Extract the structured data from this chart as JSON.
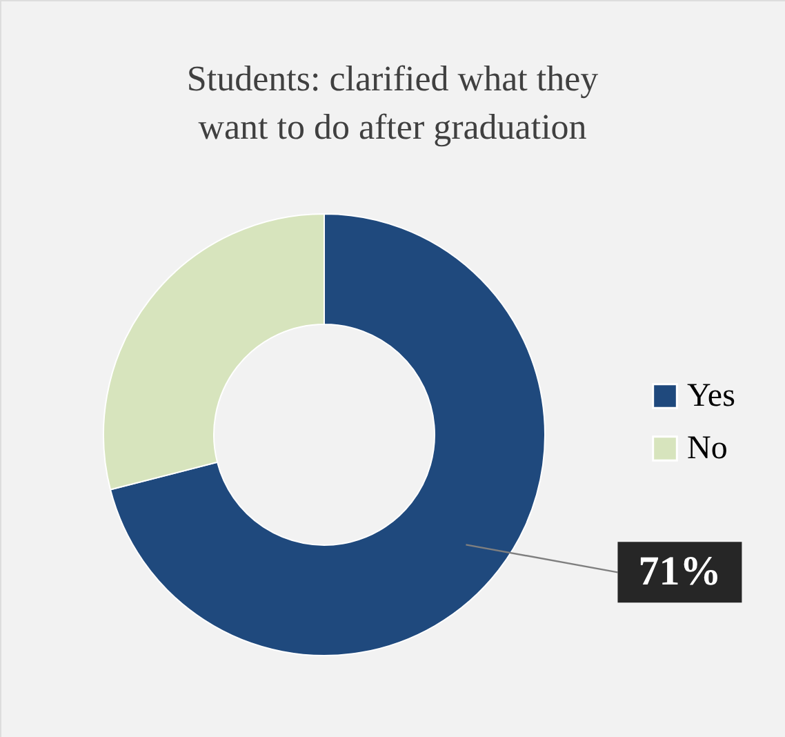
{
  "chart_data": {
    "type": "donut",
    "title": "Students:  clarified what they want to do after graduation",
    "categories": [
      "Yes",
      "No"
    ],
    "values": [
      71,
      29
    ],
    "colors": [
      "#1f497d",
      "#d7e4bd"
    ],
    "value_labels": [
      "71%",
      null
    ],
    "legend": "right"
  }
}
